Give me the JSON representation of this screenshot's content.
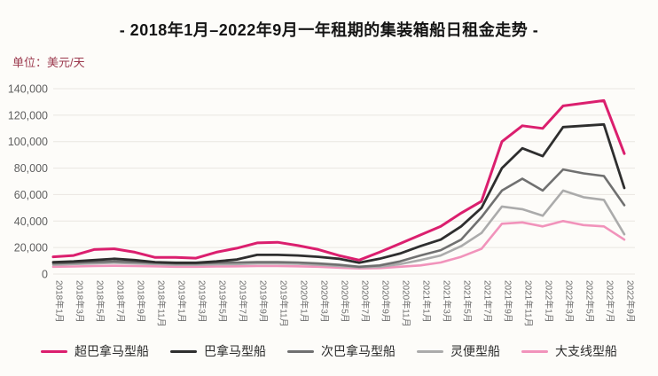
{
  "title": "- 2018年1月–2022年9月一年租期的集装箱船日租金走势 -",
  "unit_label": "单位：美元/天",
  "colors": {
    "background": "#fdfcf9",
    "title_text": "#141414",
    "unit_text": "#9c3a4e",
    "grid_line": "#e9e6e1",
    "y_axis_text": "#5f5f5f",
    "x_axis_text": "#6e6e6e",
    "legend_text": "#2b2b2b"
  },
  "chart_data": {
    "type": "line",
    "title": "- 2018年1月–2022年9月一年租期的集装箱船日租金走势 -",
    "ylabel": "美元/天",
    "xlabel": "",
    "ylim": [
      0,
      140000
    ],
    "y_ticks": [
      0,
      20000,
      40000,
      60000,
      80000,
      100000,
      120000,
      140000
    ],
    "grid": "horizontal",
    "legend_position": "bottom",
    "categories": [
      "2018年1月",
      "2018年3月",
      "2018年5月",
      "2018年7月",
      "2018年9月",
      "2018年11月",
      "2019年1月",
      "2019年3月",
      "2019年5月",
      "2019年7月",
      "2019年9月",
      "2019年11月",
      "2020年1月",
      "2020年3月",
      "2020年5月",
      "2020年7月",
      "2020年9月",
      "2020年11月",
      "2021年1月",
      "2021年3月",
      "2021年5月",
      "2021年7月",
      "2021年9月",
      "2021年11月",
      "2022年1月",
      "2022年3月",
      "2022年5月",
      "2022年7月",
      "2022年9月"
    ],
    "series": [
      {
        "name": "超巴拿马型船",
        "color": "#db1f6e",
        "stroke_width": 3,
        "values": [
          13000,
          14000,
          18500,
          19000,
          16500,
          12500,
          12500,
          12000,
          16500,
          19500,
          23500,
          24000,
          21500,
          18500,
          14000,
          10500,
          16500,
          23000,
          29500,
          36000,
          46000,
          55000,
          100000,
          112000,
          110000,
          127000,
          129000,
          131000,
          91000
        ]
      },
      {
        "name": "巴拿马型船",
        "color": "#2e2e2e",
        "stroke_width": 2.8,
        "values": [
          9000,
          9500,
          10500,
          11500,
          10500,
          9000,
          8500,
          8500,
          9500,
          11000,
          14500,
          14500,
          14000,
          13000,
          11500,
          8500,
          11500,
          15500,
          21000,
          26000,
          36000,
          50000,
          80000,
          95000,
          89000,
          111000,
          112000,
          113000,
          65000
        ]
      },
      {
        "name": "次巴拿马型船",
        "color": "#707070",
        "stroke_width": 2.6,
        "values": [
          8000,
          8500,
          9000,
          9500,
          9000,
          8500,
          8000,
          8000,
          8500,
          8700,
          9000,
          9000,
          8700,
          8000,
          7000,
          5500,
          6500,
          9500,
          14000,
          18000,
          26000,
          43000,
          63000,
          72000,
          63000,
          79000,
          76000,
          74000,
          52000
        ]
      },
      {
        "name": "灵便型船",
        "color": "#ababab",
        "stroke_width": 2.6,
        "values": [
          7000,
          7500,
          8000,
          8500,
          8000,
          7500,
          7000,
          7000,
          7300,
          7500,
          8000,
          8000,
          7700,
          7000,
          6000,
          5000,
          5500,
          7500,
          10500,
          14000,
          21000,
          31000,
          51000,
          49000,
          44000,
          63000,
          58000,
          56000,
          30000
        ]
      },
      {
        "name": "大支线型船",
        "color": "#f193bb",
        "stroke_width": 2.6,
        "values": [
          5500,
          5700,
          6000,
          6200,
          6000,
          5800,
          5500,
          5500,
          5700,
          5800,
          6000,
          6000,
          5800,
          5500,
          4800,
          4200,
          4500,
          5500,
          6500,
          8700,
          13000,
          19000,
          38000,
          39000,
          36000,
          40000,
          37000,
          36000,
          26000
        ]
      }
    ]
  }
}
